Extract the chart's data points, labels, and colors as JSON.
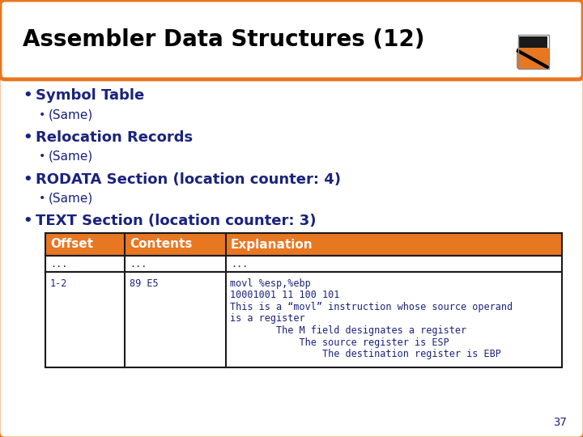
{
  "title": "Assembler Data Structures (12)",
  "title_color": "#000000",
  "slide_border_color": "#E87722",
  "slide_bg": "#ffffff",
  "bullet_color": "#1A237E",
  "bullets": [
    {
      "level": 1,
      "text": "Symbol Table"
    },
    {
      "level": 2,
      "text": "(Same)"
    },
    {
      "level": 1,
      "text": "Relocation Records"
    },
    {
      "level": 2,
      "text": "(Same)"
    },
    {
      "level": 1,
      "text": "RODATA Section (location counter: 4)"
    },
    {
      "level": 2,
      "text": "(Same)"
    },
    {
      "level": 1,
      "text": "TEXT Section (location counter: 3)"
    }
  ],
  "table_header": [
    "Offset",
    "Contents",
    "Explanation"
  ],
  "table_header_bg": "#E87722",
  "table_border_color": "#1A1A1A",
  "table_rows_r1": [
    "...",
    "...",
    "..."
  ],
  "table_row2_col0": "1-2",
  "table_row2_col1": "89 E5",
  "table_row2_col2": [
    "movl %esp,%ebp",
    "10001001 11 100 101",
    "This is a “movl” instruction whose source operand",
    "is a register",
    "        The M field designates a register",
    "            The source register is ESP",
    "                The destination register is EBP"
  ],
  "table_font_color": "#1A237E",
  "page_number": "37",
  "title_fontsize": 20,
  "bullet1_fontsize": 13,
  "bullet2_fontsize": 11,
  "table_hdr_fontsize": 11,
  "table_cell_fontsize": 8.5
}
